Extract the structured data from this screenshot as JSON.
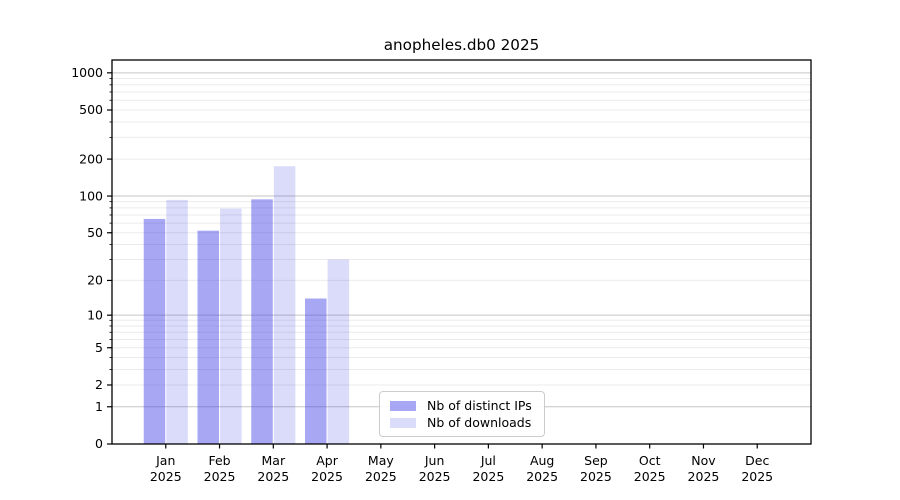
{
  "chart_data": {
    "type": "bar",
    "title": "anopheles.db0 2025",
    "scale": "log1p",
    "year": "2025",
    "months": [
      "Jan",
      "Feb",
      "Mar",
      "Apr",
      "May",
      "Jun",
      "Jul",
      "Aug",
      "Sep",
      "Oct",
      "Nov",
      "Dec"
    ],
    "series": [
      {
        "name": "Nb of distinct IPs",
        "color": "rgba(60,60,230,0.45)",
        "values": [
          65,
          52,
          94,
          14,
          0,
          0,
          0,
          0,
          0,
          0,
          0,
          0
        ]
      },
      {
        "name": "Nb of downloads",
        "color": "rgba(60,60,230,0.185)",
        "values": [
          93,
          79,
          175,
          30,
          0,
          0,
          0,
          0,
          0,
          0,
          0,
          0
        ]
      }
    ],
    "yticks": [
      0,
      1,
      2,
      5,
      10,
      20,
      50,
      100,
      200,
      500,
      1000
    ],
    "ylim": [
      0,
      1270
    ],
    "grid": true,
    "legend_position": "lower center",
    "xlabel": "",
    "ylabel": ""
  },
  "colors": {
    "background": "#ffffff",
    "axis": "#000000",
    "text": "#000000",
    "grid_major": "#c6c6c6",
    "grid_minor": "#ebebeb",
    "legend_border": "#cccccc"
  }
}
